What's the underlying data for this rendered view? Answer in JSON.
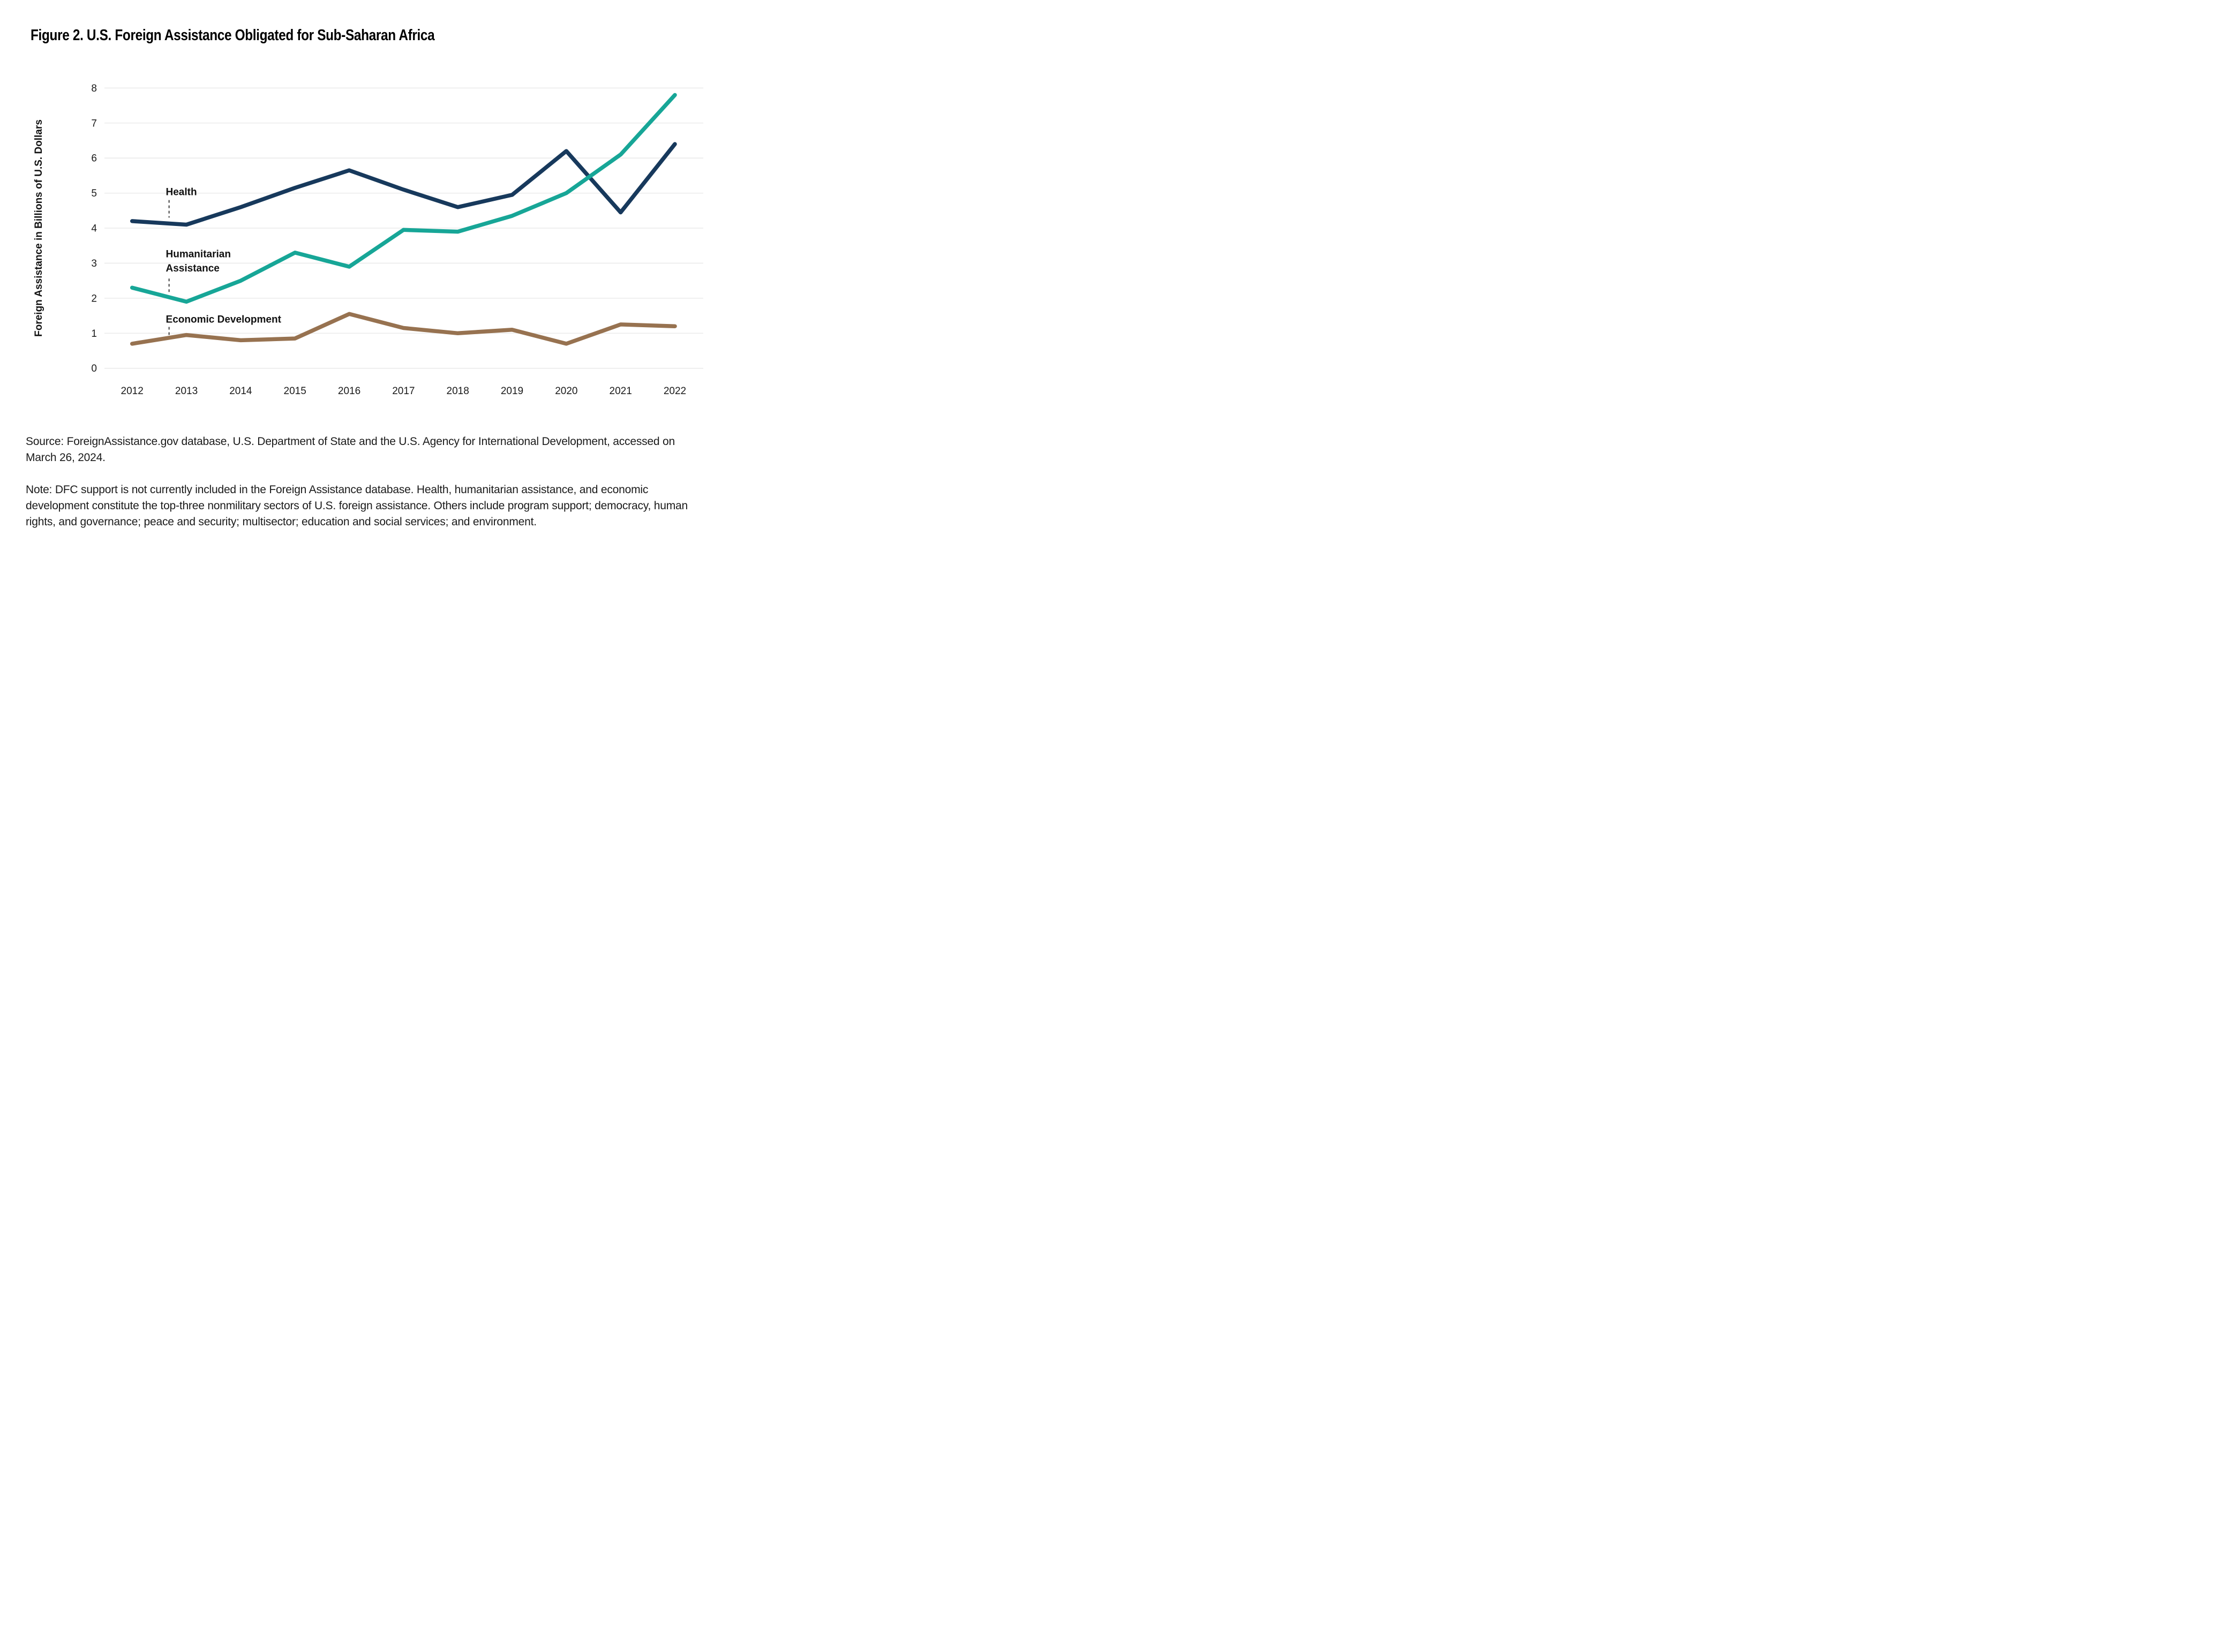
{
  "figure": {
    "title": "Figure 2. U.S. Foreign Assistance Obligated for Sub-Saharan Africa",
    "source_text": "Source: ForeignAssistance.gov database, U.S. Department of State and the U.S. Agency for International Development, accessed on March 26, 2024.",
    "note_text": "Note: DFC support is not currently included in the Foreign Assistance database. Health, humanitarian assistance, and economic development constitute the top-three nonmilitary sectors of U.S. foreign assistance. Others include program support; democracy, human rights, and governance; peace and security; multisector; education and social services; and environment."
  },
  "chart_data": {
    "type": "line",
    "title": "Figure 2. U.S. Foreign Assistance Obligated for Sub-Saharan Africa",
    "xlabel": "",
    "ylabel": "Foreign Assistance in Billions of U.S. Dollars",
    "x": [
      2012,
      2013,
      2014,
      2015,
      2016,
      2017,
      2018,
      2019,
      2020,
      2021,
      2022
    ],
    "ylim": [
      0,
      8
    ],
    "yticks": [
      0,
      1,
      2,
      3,
      4,
      5,
      6,
      7,
      8
    ],
    "grid": true,
    "legend_position": "inline-annotations",
    "series": [
      {
        "name": "Health",
        "color": "#17395C",
        "values": [
          4.2,
          4.1,
          4.6,
          5.15,
          5.65,
          5.1,
          4.6,
          4.95,
          6.2,
          4.45,
          6.4
        ]
      },
      {
        "name": "Humanitarian Assistance",
        "color": "#17A697",
        "values": [
          2.3,
          1.9,
          2.5,
          3.3,
          2.9,
          3.95,
          3.9,
          4.35,
          5.0,
          6.1,
          7.8
        ]
      },
      {
        "name": "Economic Development",
        "color": "#977250",
        "values": [
          0.7,
          0.95,
          0.8,
          0.85,
          1.55,
          1.15,
          1.0,
          1.1,
          0.7,
          1.25,
          1.2
        ]
      }
    ],
    "annotations": [
      {
        "id": "health",
        "lines": [
          "Health"
        ],
        "text_x_year": 2012.62,
        "line_y_values": [
          5.04
        ],
        "dash_x_year": 2012.68,
        "dash_from": 4.8,
        "dash_to": 4.3
      },
      {
        "id": "humanitarian-assistance",
        "lines": [
          "Humanitarian",
          "Assistance"
        ],
        "text_x_year": 2012.62,
        "line_y_values": [
          3.27,
          2.86
        ],
        "dash_x_year": 2012.68,
        "dash_from": 2.56,
        "dash_to": 2.16
      },
      {
        "id": "economic-development",
        "lines": [
          "Economic Development"
        ],
        "text_x_year": 2012.62,
        "line_y_values": [
          1.4
        ],
        "dash_x_year": 2012.68,
        "dash_from": 1.18,
        "dash_to": 0.9
      }
    ]
  }
}
